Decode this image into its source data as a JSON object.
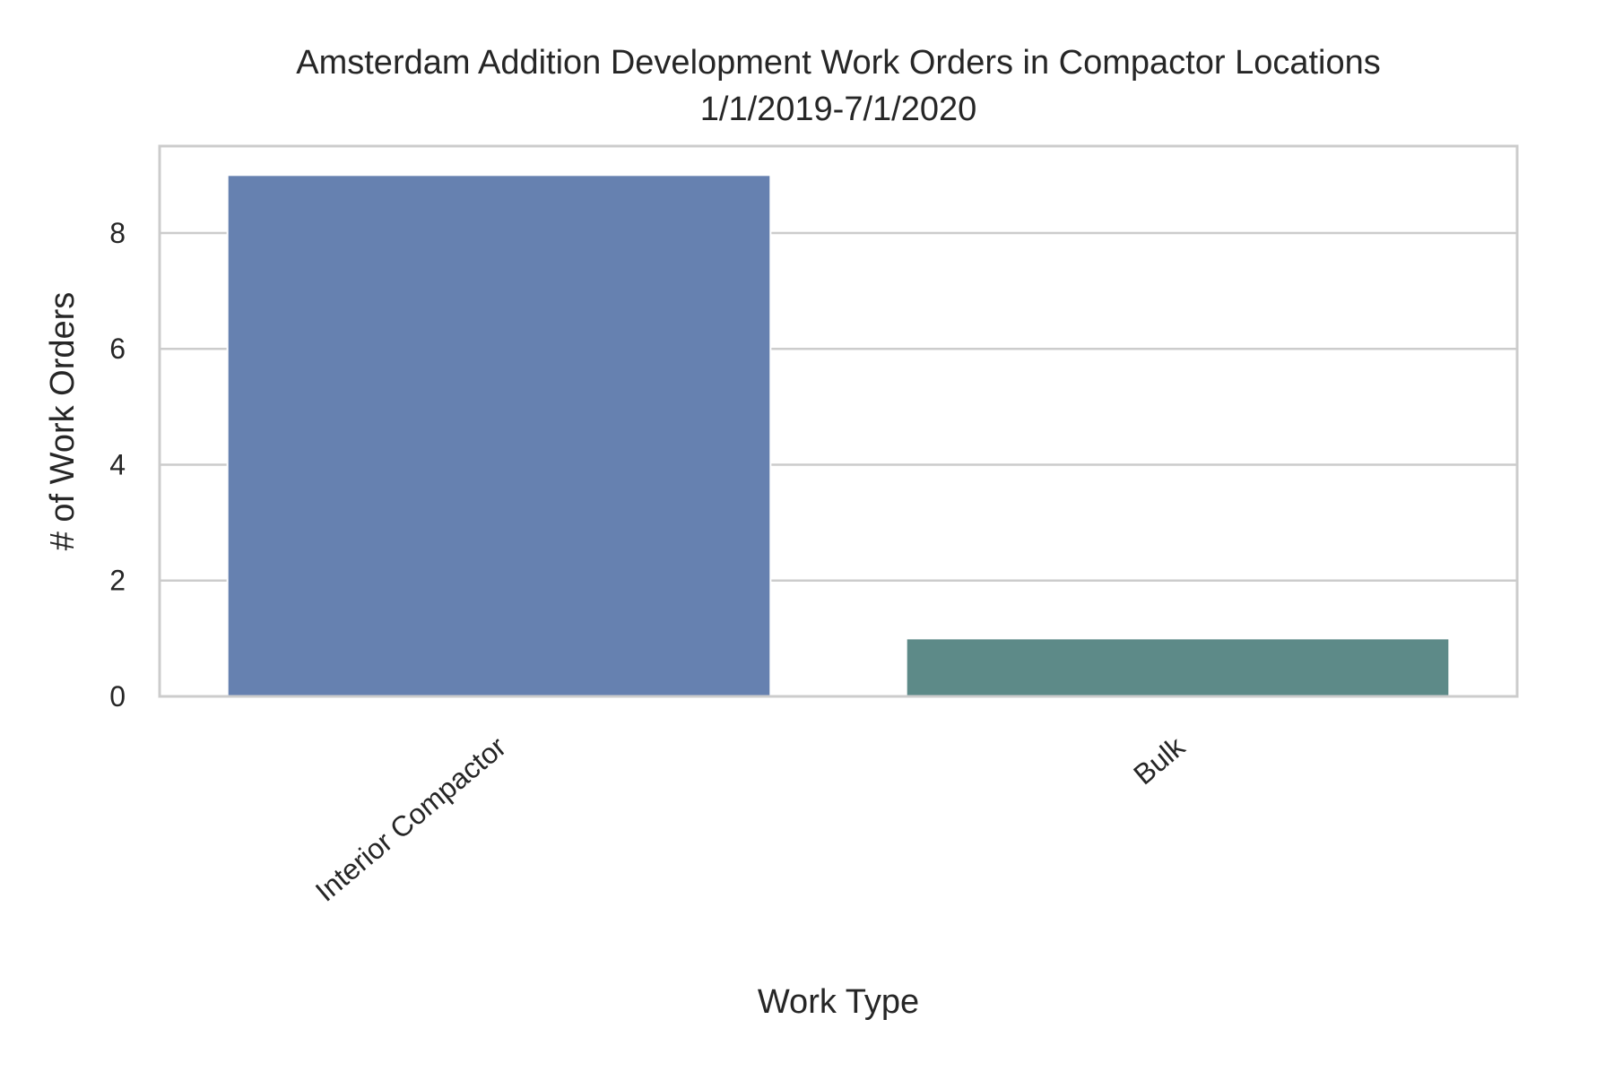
{
  "chart_data": {
    "type": "bar",
    "title": "Amsterdam Addition Development Work Orders in Compactor Locations",
    "subtitle": "1/1/2019-7/1/2020",
    "xlabel": "Work Type",
    "ylabel": "# of Work Orders",
    "categories": [
      "Interior Compactor",
      "Bulk"
    ],
    "values": [
      9,
      1
    ],
    "ylim": [
      0,
      9.5
    ],
    "yticks": [
      0,
      2,
      4,
      6,
      8
    ],
    "grid": true,
    "legend": "none",
    "colors": [
      "#6681b0",
      "#5d8a88"
    ],
    "grid_color": "#cccccc",
    "spine_color": "#cccccc"
  }
}
